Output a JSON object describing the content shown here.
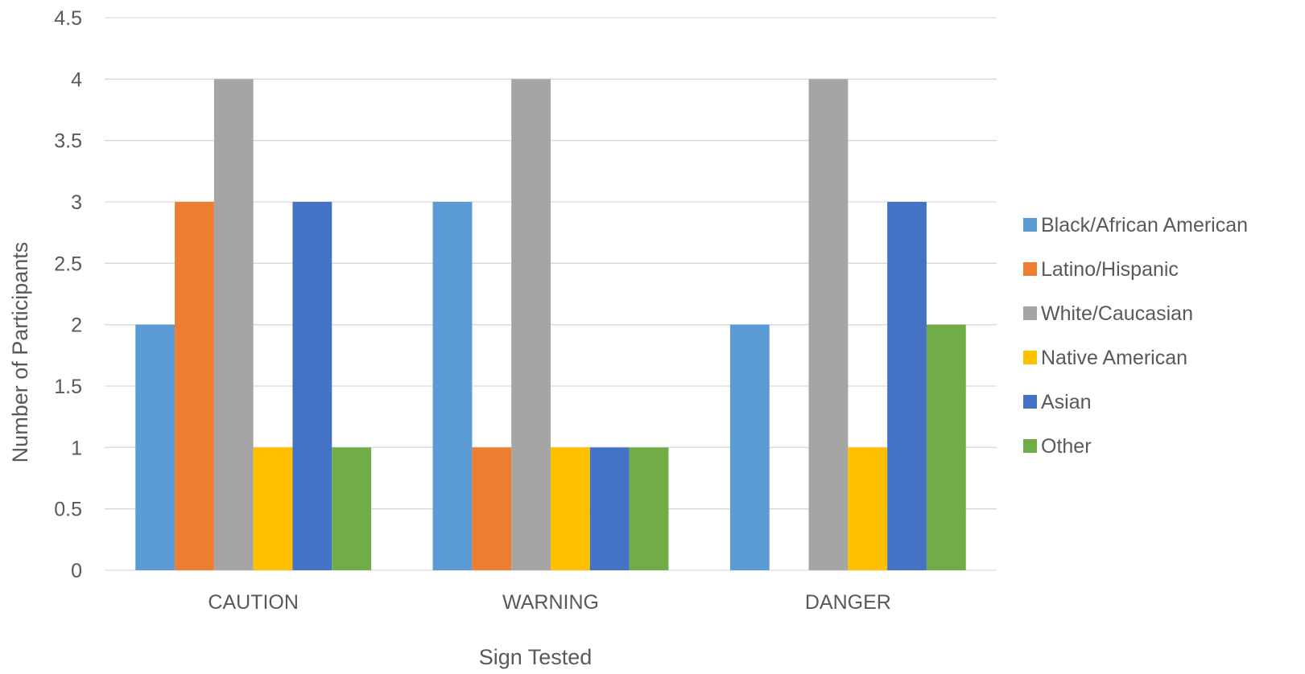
{
  "chart_data": {
    "type": "bar",
    "title": "",
    "xlabel": "Sign Tested",
    "ylabel": "Number of Participants",
    "categories": [
      "CAUTION",
      "WARNING",
      "DANGER"
    ],
    "series": [
      {
        "name": "Black/African American",
        "color": "#5B9BD5",
        "values": [
          2,
          3,
          2
        ]
      },
      {
        "name": "Latino/Hispanic",
        "color": "#ED7D31",
        "values": [
          3,
          1,
          0
        ]
      },
      {
        "name": "White/Caucasian",
        "color": "#A5A5A5",
        "values": [
          4,
          4,
          4
        ]
      },
      {
        "name": "Native American",
        "color": "#FFC000",
        "values": [
          1,
          1,
          1
        ]
      },
      {
        "name": "Asian",
        "color": "#4472C4",
        "values": [
          3,
          1,
          3
        ]
      },
      {
        "name": "Other",
        "color": "#70AD47",
        "values": [
          1,
          1,
          2
        ]
      }
    ],
    "ylim": [
      0,
      4.5
    ],
    "yticks": [
      "0",
      "0.5",
      "1",
      "1.5",
      "2",
      "2.5",
      "3",
      "3.5",
      "4",
      "4.5"
    ],
    "grid": true,
    "legend_position": "right",
    "colors": {
      "gridline": "#D9D9D9",
      "text": "#595959"
    }
  }
}
